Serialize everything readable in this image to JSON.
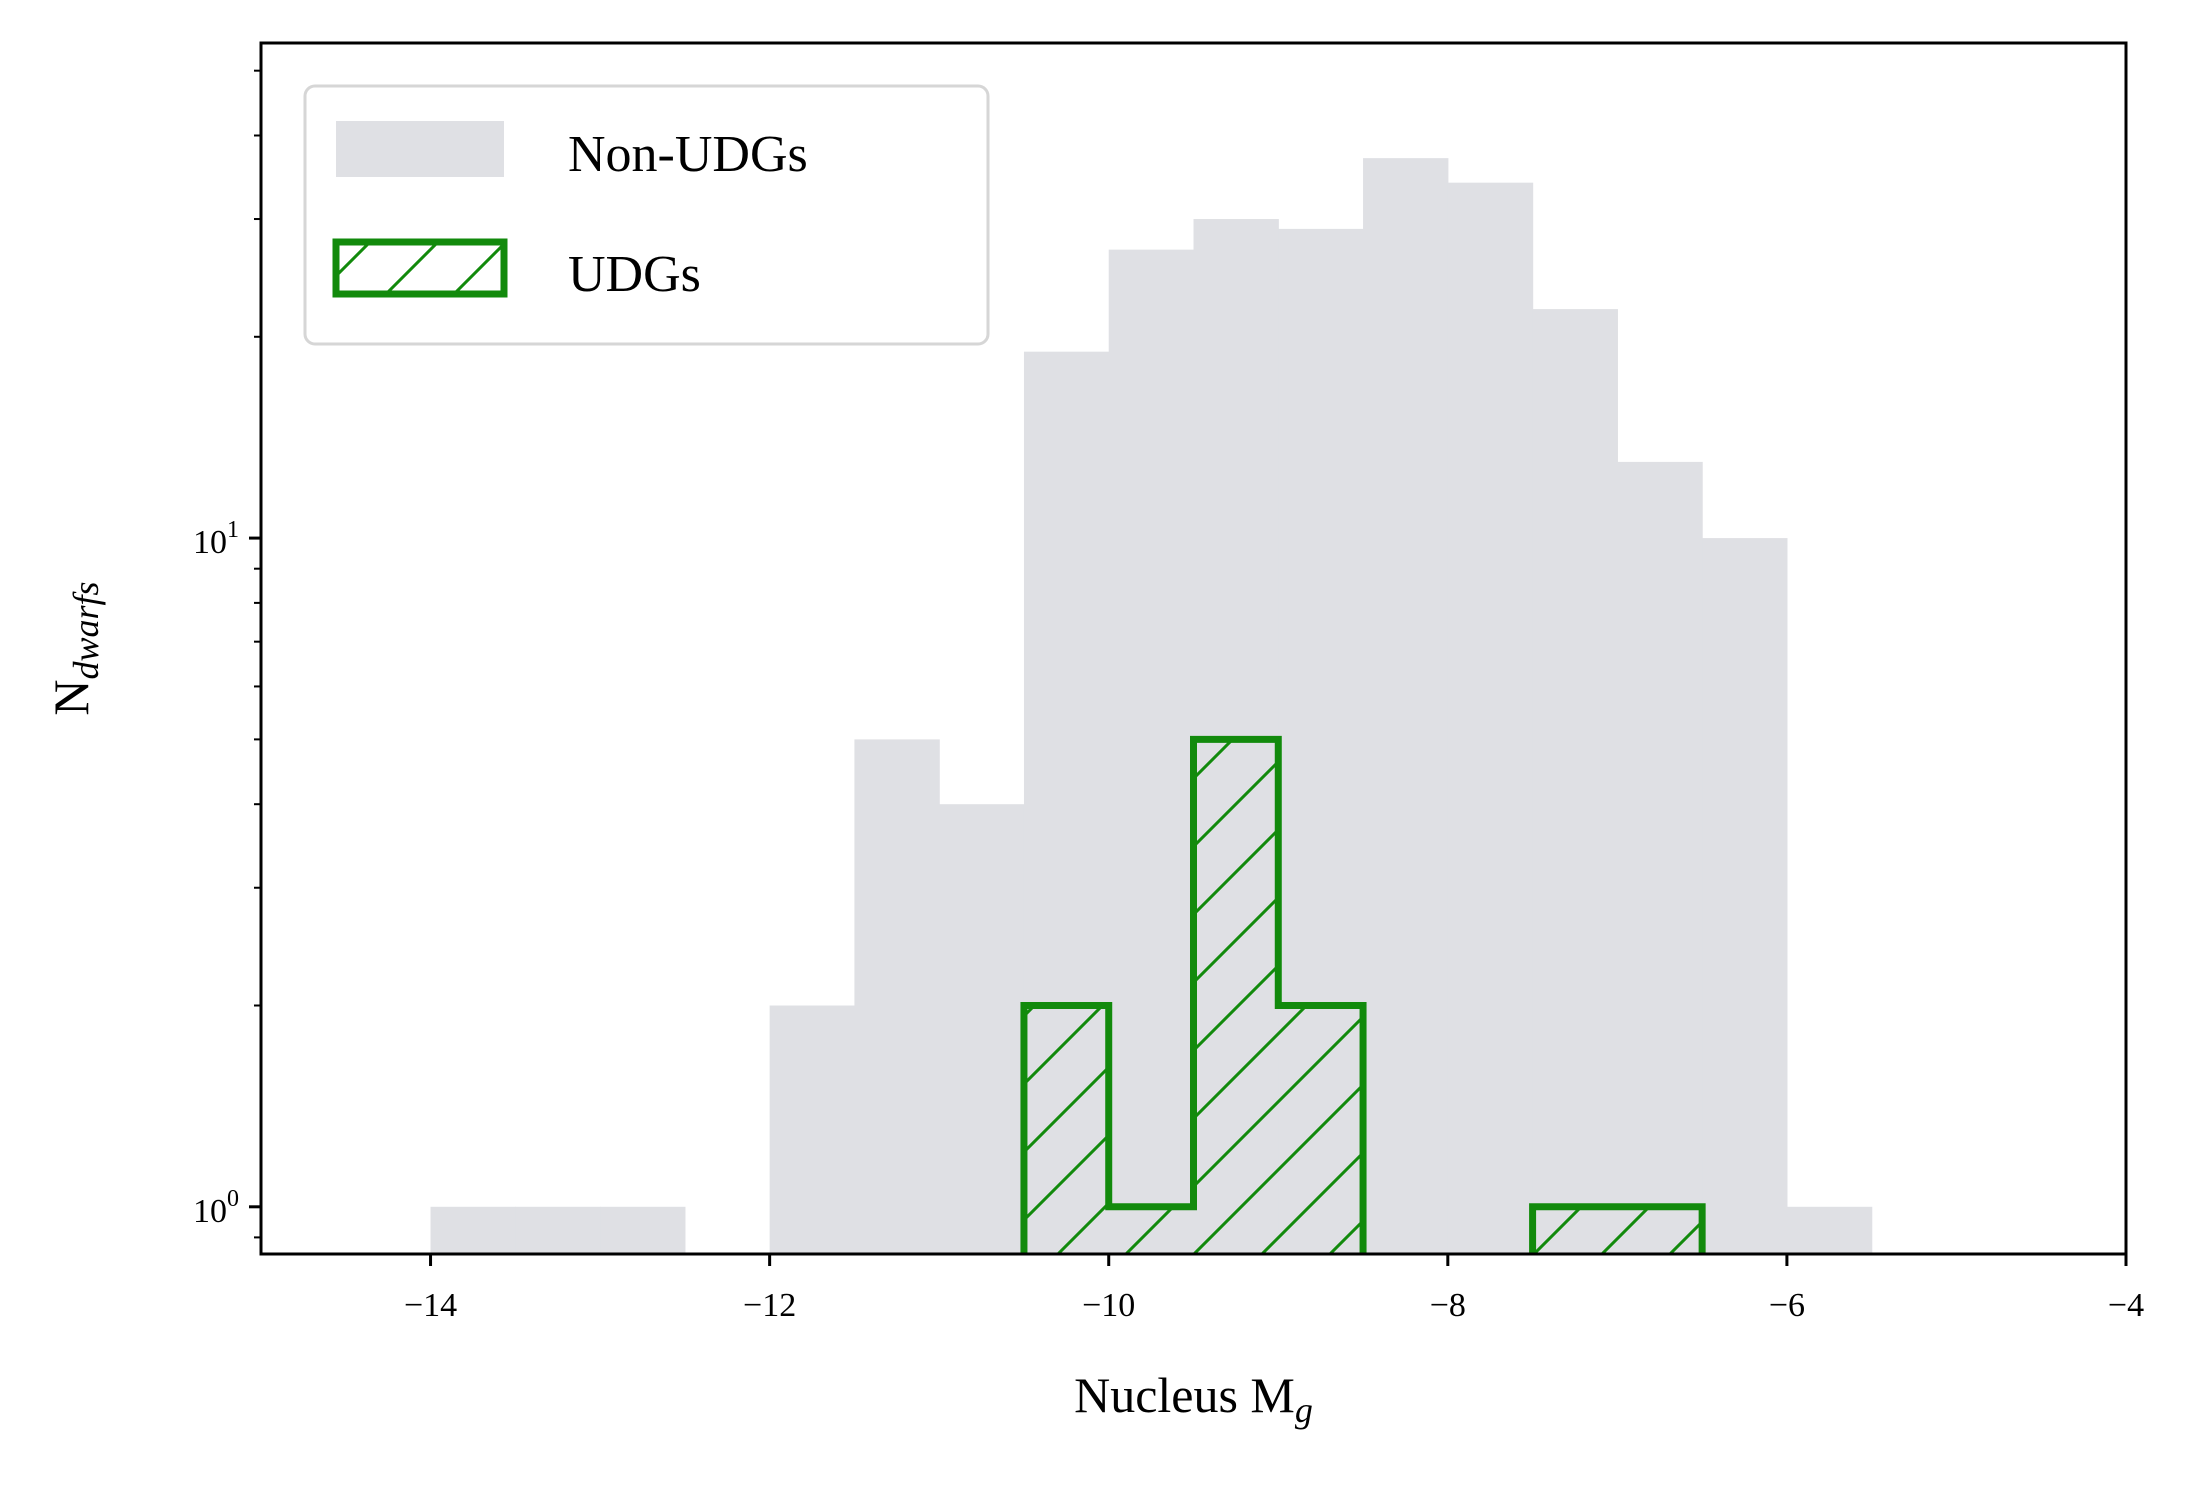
{
  "chart_data": {
    "type": "bar",
    "xlabel": "Nucleus M",
    "xlabel_sub": "g",
    "ylabel": "N",
    "ylabel_sub": "dwarfs",
    "xlim": [
      -15,
      -4
    ],
    "ylim": [
      0.85,
      55
    ],
    "yscale": "log",
    "xticks": [
      -14,
      -12,
      -10,
      -8,
      -6,
      -4
    ],
    "xtick_labels": [
      "−14",
      "−12",
      "−10",
      "−8",
      "−6",
      "−4"
    ],
    "yticks": [
      {
        "base": "10",
        "exp": "0",
        "value": 1
      },
      {
        "base": "10",
        "exp": "1",
        "value": 10
      }
    ],
    "legend_position": "top-left",
    "bin_width": 0.5,
    "series": [
      {
        "name": "Non-UDGs",
        "style": "filled",
        "color": "#dfe0e4",
        "bins": [
          {
            "x0": -14.0,
            "value": 1
          },
          {
            "x0": -13.5,
            "value": 1
          },
          {
            "x0": -13.0,
            "value": 1
          },
          {
            "x0": -12.0,
            "value": 2
          },
          {
            "x0": -11.5,
            "value": 5
          },
          {
            "x0": -11.0,
            "value": 4
          },
          {
            "x0": -10.5,
            "value": 19
          },
          {
            "x0": -10.0,
            "value": 27
          },
          {
            "x0": -9.5,
            "value": 30
          },
          {
            "x0": -9.0,
            "value": 29
          },
          {
            "x0": -8.5,
            "value": 37
          },
          {
            "x0": -8.0,
            "value": 34
          },
          {
            "x0": -7.5,
            "value": 22
          },
          {
            "x0": -7.0,
            "value": 13
          },
          {
            "x0": -6.5,
            "value": 10
          },
          {
            "x0": -6.0,
            "value": 1
          }
        ]
      },
      {
        "name": "UDGs",
        "style": "hatched-step",
        "color": "#128a0c",
        "bins": [
          {
            "x0": -10.5,
            "value": 2
          },
          {
            "x0": -10.0,
            "value": 1
          },
          {
            "x0": -9.5,
            "value": 5
          },
          {
            "x0": -9.0,
            "value": 2
          },
          {
            "x0": -7.5,
            "value": 1
          },
          {
            "x0": -7.0,
            "value": 1
          }
        ]
      }
    ]
  }
}
